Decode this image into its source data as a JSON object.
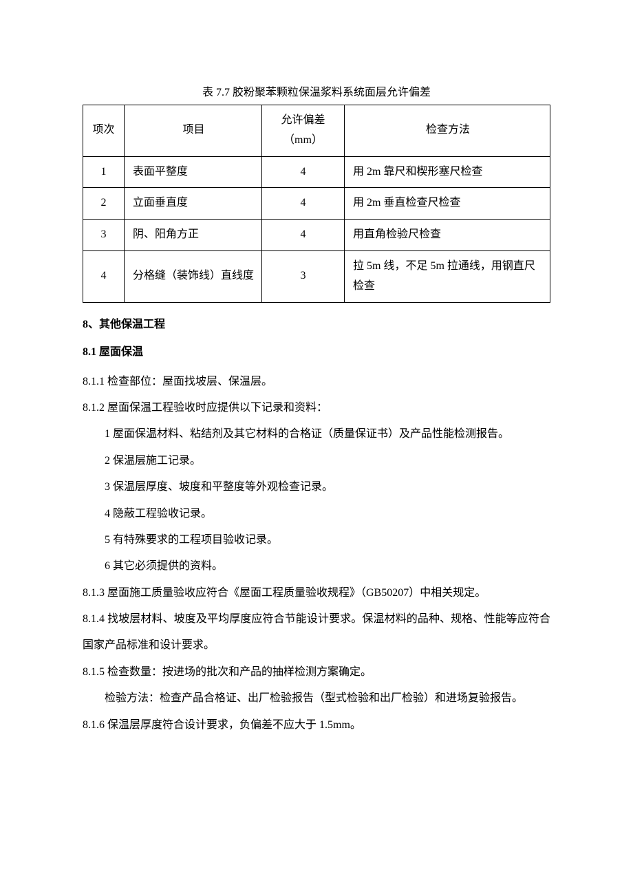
{
  "table": {
    "caption": "表 7.7 胶粉聚苯颗粒保温浆料系统面层允许偏差",
    "headers": {
      "idx": "项次",
      "item": "项目",
      "deviation": "允许偏差（mm）",
      "method": "检查方法"
    },
    "rows": [
      {
        "idx": "1",
        "item": "表面平整度",
        "dev": "4",
        "method": "用 2m 靠尺和楔形塞尺检查"
      },
      {
        "idx": "2",
        "item": "立面垂直度",
        "dev": "4",
        "method": "用 2m 垂直检查尺检查"
      },
      {
        "idx": "3",
        "item": "阴、阳角方正",
        "dev": "4",
        "method": "用直角检验尺检查"
      },
      {
        "idx": "4",
        "item": "分格缝（装饰线）直线度",
        "dev": "3",
        "method": "拉 5m 线，不足 5m 拉通线，用钢直尺检查"
      }
    ]
  },
  "section8": {
    "heading": "8、其他保温工程",
    "sub81": {
      "heading": "8.1 屋面保温",
      "p811": "8.1.1   检查部位：屋面找坡层、保温层。",
      "p812": "8.1.2   屋面保温工程验收时应提供以下记录和资料：",
      "p812_items": [
        "1 屋面保温材料、粘结剂及其它材料的合格证（质量保证书）及产品性能检测报告。",
        "2 保温层施工记录。",
        "3 保温层厚度、坡度和平整度等外观检查记录。",
        "4 隐蔽工程验收记录。",
        "5 有特殊要求的工程项目验收记录。",
        "6 其它必须提供的资料。"
      ],
      "p813": "8.1.3   屋面施工质量验收应符合《屋面工程质量验收规程》（GB50207）中相关规定。",
      "p814": "8.1.4   找坡层材料、坡度及平均厚度应符合节能设计要求。保温材料的品种、规格、性能等应符合国家产品标准和设计要求。",
      "p815": "8.1.5   检查数量：按进场的批次和产品的抽样检测方案确定。",
      "p815b": "检验方法：检查产品合格证、出厂检验报告（型式检验和出厂检验）和进场复验报告。",
      "p816": "8.1.6   保温层厚度符合设计要求，负偏差不应大于 1.5mm。"
    }
  }
}
